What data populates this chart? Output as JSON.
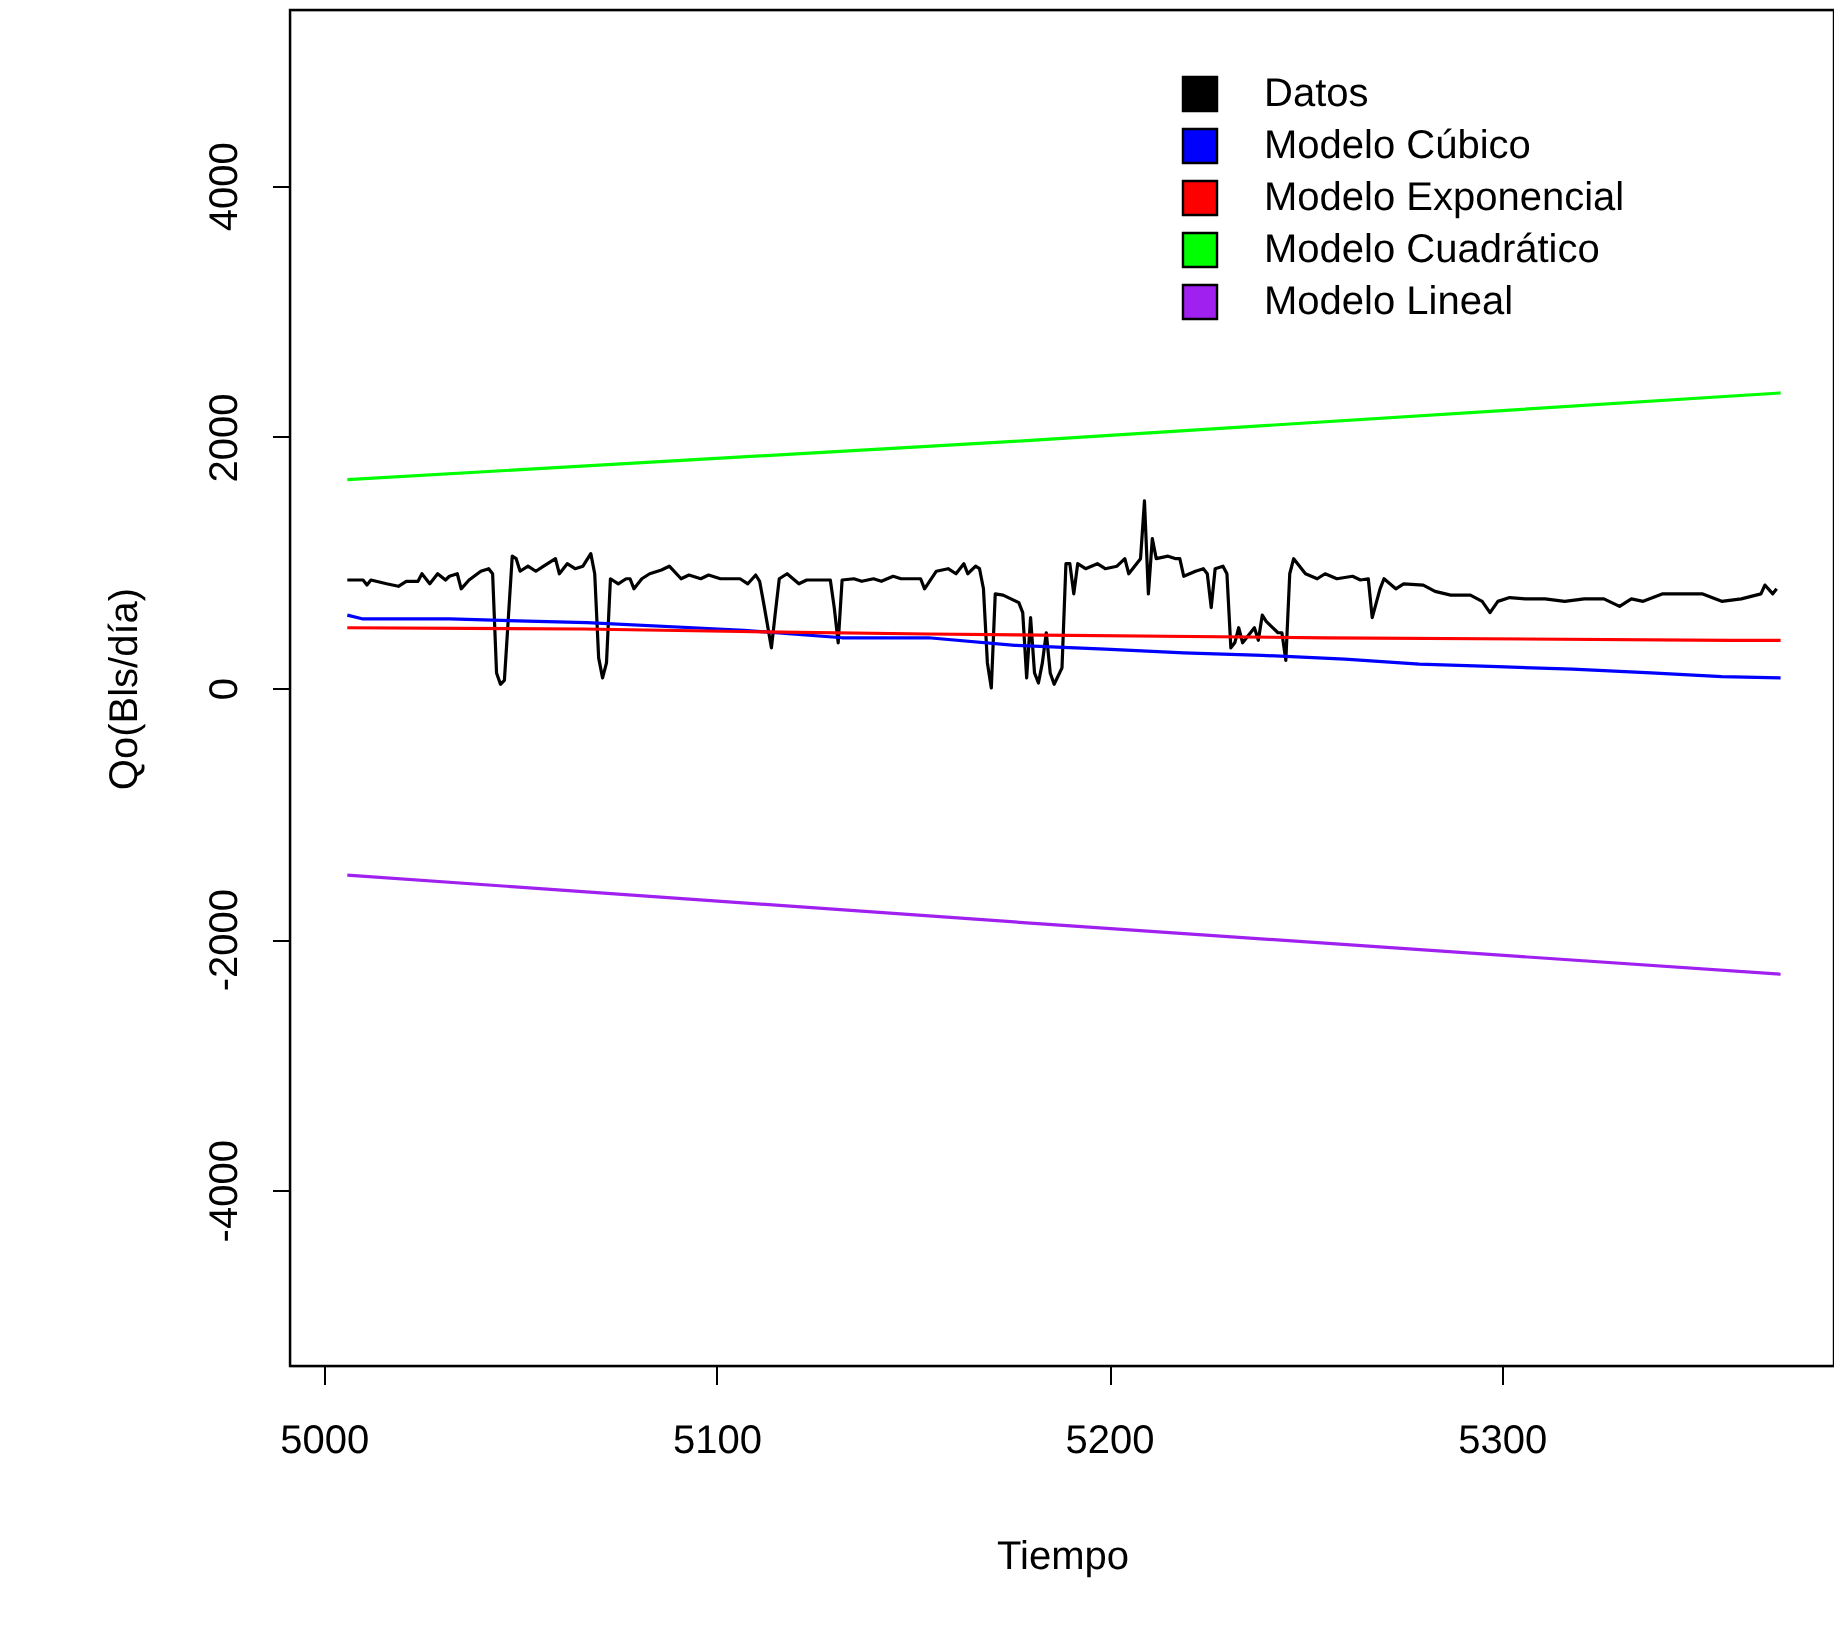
{
  "chart_data": {
    "type": "line",
    "xlabel": "Tiempo",
    "ylabel": "Qo(Bls/día)",
    "xlim": [
      4991.4,
      5384.6
    ],
    "ylim": [
      -5400,
      5400
    ],
    "xticks": [
      5000,
      5100,
      5200,
      5300
    ],
    "yticks": [
      -4000,
      -2000,
      0,
      2000,
      4000
    ],
    "grid": false,
    "legend": "top right",
    "marker": "none",
    "line_style": "solid",
    "series": [
      {
        "name": "Datos",
        "color": "#000000",
        "x": [
          5006,
          5010,
          5011,
          5012,
          5016,
          5019,
          5021,
          5024,
          5025,
          5027,
          5029,
          5031,
          5032,
          5034,
          5035,
          5037,
          5040,
          5042,
          5043,
          5044,
          5045,
          5046,
          5048,
          5049,
          5050,
          5052,
          5054,
          5056,
          5059,
          5060,
          5062,
          5064,
          5066,
          5068,
          5069,
          5070,
          5071,
          5072,
          5073,
          5075,
          5077,
          5078,
          5079,
          5081,
          5083,
          5086,
          5088,
          5091,
          5093,
          5096,
          5098,
          5101,
          5103,
          5106,
          5108,
          5110,
          5111,
          5112,
          5114,
          5115,
          5116,
          5118,
          5121,
          5123,
          5129,
          5130,
          5131,
          5132,
          5135,
          5137,
          5140,
          5142,
          5145,
          5147,
          5152,
          5153,
          5156,
          5159,
          5161,
          5163,
          5164,
          5166,
          5167,
          5168,
          5169,
          5170,
          5171,
          5173,
          5177,
          5178,
          5179,
          5180,
          5181,
          5182,
          5183,
          5184,
          5185,
          5186,
          5188,
          5189,
          5190,
          5191,
          5192,
          5194,
          5197,
          5199,
          5202,
          5204,
          5205,
          5207,
          5208,
          5209,
          5210,
          5211,
          5212,
          5215,
          5217,
          5218,
          5219,
          5222,
          5224,
          5225,
          5226,
          5227,
          5229,
          5230,
          5231,
          5232,
          5233,
          5234,
          5235,
          5237,
          5238,
          5239,
          5240,
          5243,
          5244,
          5245,
          5246,
          5247,
          5248,
          5250,
          5253,
          5255,
          5258,
          5262,
          5264,
          5266,
          5267,
          5269,
          5270,
          5273,
          5275,
          5280,
          5283,
          5287,
          5292,
          5295,
          5297,
          5299,
          5302,
          5306,
          5311,
          5316,
          5321,
          5326,
          5330,
          5333,
          5336,
          5341,
          5346,
          5351,
          5356,
          5361,
          5366,
          5367,
          5369,
          5370
        ],
        "values": [
          860,
          860,
          820,
          860,
          830,
          810,
          850,
          850,
          910,
          830,
          910,
          860,
          890,
          910,
          790,
          860,
          930,
          950,
          910,
          120,
          30,
          60,
          1050,
          1030,
          930,
          970,
          930,
          970,
          1030,
          910,
          990,
          950,
          970,
          1070,
          910,
          240,
          80,
          200,
          870,
          830,
          870,
          870,
          790,
          870,
          910,
          940,
          970,
          870,
          900,
          870,
          900,
          870,
          870,
          870,
          830,
          900,
          850,
          680,
          320,
          600,
          870,
          910,
          830,
          860,
          860,
          640,
          360,
          860,
          870,
          850,
          870,
          850,
          890,
          870,
          870,
          790,
          930,
          950,
          910,
          990,
          910,
          970,
          950,
          790,
          200,
          0,
          750,
          740,
          680,
          600,
          80,
          560,
          120,
          40,
          200,
          440,
          120,
          30,
          160,
          990,
          990,
          750,
          990,
          950,
          990,
          950,
          970,
          1030,
          910,
          990,
          1030,
          1490,
          750,
          1190,
          1030,
          1050,
          1030,
          1030,
          890,
          930,
          950,
          910,
          640,
          950,
          970,
          910,
          320,
          360,
          480,
          360,
          400,
          480,
          380,
          580,
          530,
          440,
          440,
          220,
          910,
          1030,
          990,
          910,
          870,
          910,
          870,
          890,
          860,
          870,
          560,
          790,
          870,
          790,
          830,
          820,
          770,
          740,
          740,
          690,
          600,
          690,
          720,
          710,
          710,
          690,
          710,
          710,
          650,
          710,
          690,
          750,
          750,
          750,
          690,
          710,
          750,
          820,
          750,
          790
        ]
      },
      {
        "name": "Modelo Cúbico",
        "color": "#0000ff",
        "x": [
          5006,
          5010,
          5032,
          5067,
          5107,
          5132,
          5154,
          5176,
          5199,
          5219,
          5239,
          5260,
          5279,
          5299,
          5318,
          5338,
          5356,
          5371
        ],
        "values": [
          580,
          550,
          550,
          520,
          460,
          400,
          400,
          340,
          310,
          280,
          260,
          230,
          190,
          170,
          150,
          120,
          90,
          80
        ]
      },
      {
        "name": "Modelo Exponencial",
        "color": "#ff0000",
        "x": [
          5006,
          5066,
          5106,
          5154,
          5255,
          5358,
          5371
        ],
        "values": [
          480,
          470,
          450,
          430,
          400,
          380,
          380
        ]
      },
      {
        "name": "Modelo Cuadrático",
        "color": "#00ff00",
        "x": [
          5006,
          5179,
          5371
        ],
        "values": [
          1660,
          1970,
          2350
        ]
      },
      {
        "name": "Modelo Lineal",
        "color": "#a020f0",
        "x": [
          5006,
          5179,
          5371
        ],
        "values": [
          -1490,
          -1870,
          -2280
        ]
      }
    ]
  }
}
